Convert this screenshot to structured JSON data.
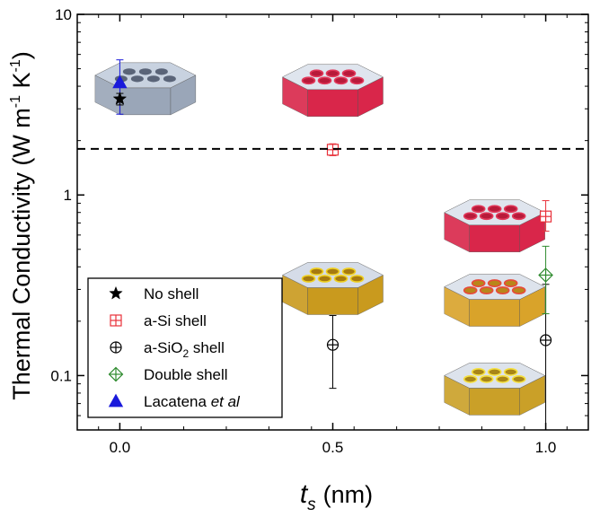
{
  "chart_data": {
    "type": "scatter",
    "xlabel": {
      "main": "t",
      "sub": "s",
      "unit": "(nm)"
    },
    "ylabel": "Thermal Conductivity (W m",
    "ylabel_sup1": "-1",
    "ylabel_mid": " K",
    "ylabel_sup2": "-1",
    "ylabel_end": ")",
    "xlim": [
      -0.1,
      1.1
    ],
    "ylim": [
      0.05,
      10
    ],
    "yscale": "log",
    "x_ticks": [
      {
        "value": 0.0,
        "label": "0.0"
      },
      {
        "value": 0.5,
        "label": "0.5"
      },
      {
        "value": 1.0,
        "label": "1.0"
      }
    ],
    "y_ticks": [
      {
        "value": 0.1,
        "label": "0.1"
      },
      {
        "value": 1,
        "label": "1"
      },
      {
        "value": 10,
        "label": "10"
      }
    ],
    "reference_line": {
      "y": 1.8,
      "style": "dashed"
    },
    "legend_position": "bottom-left",
    "series": [
      {
        "name": "No shell",
        "marker": "star",
        "color": "#000000",
        "points": [
          {
            "x": 0.0,
            "y": 3.4,
            "err_low": 3.15,
            "err_high": 3.65
          }
        ]
      },
      {
        "name": "a-Si shell",
        "marker": "square-plus",
        "color": "#e8313a",
        "points": [
          {
            "x": 0.5,
            "y": 1.78,
            "err_low": 1.65,
            "err_high": 1.92
          },
          {
            "x": 1.0,
            "y": 0.76,
            "err_low": 0.63,
            "err_high": 0.93
          }
        ]
      },
      {
        "name": "a-SiO",
        "name_sub": "2",
        "name_end": " shell",
        "marker": "circle-plus",
        "color": "#000000",
        "points": [
          {
            "x": 0.5,
            "y": 0.148,
            "err_low": 0.085,
            "err_high": 0.215
          },
          {
            "x": 1.0,
            "y": 0.157,
            "err_low": 0.05,
            "err_high": 0.32
          }
        ]
      },
      {
        "name": "Double shell",
        "marker": "diamond-plus",
        "color": "#2e8b2e",
        "points": [
          {
            "x": 1.0,
            "y": 0.36,
            "err_low": 0.22,
            "err_high": 0.52
          }
        ]
      },
      {
        "name": "Lacatena ",
        "name_italic": "et al",
        "marker": "triangle",
        "color": "#1a1adb",
        "points": [
          {
            "x": 0.0,
            "y": 4.2,
            "err_low": 2.8,
            "err_high": 5.6
          }
        ]
      }
    ],
    "illustrations": [
      {
        "kind": "plain",
        "x": 0.06,
        "y": 4.6
      },
      {
        "kind": "red",
        "x": 0.5,
        "y": 4.5
      },
      {
        "kind": "gold",
        "x": 0.5,
        "y": 0.36
      },
      {
        "kind": "red",
        "x": 0.88,
        "y": 0.8
      },
      {
        "kind": "double",
        "x": 0.88,
        "y": 0.31
      },
      {
        "kind": "gold-thin",
        "x": 0.88,
        "y": 0.1
      }
    ]
  }
}
